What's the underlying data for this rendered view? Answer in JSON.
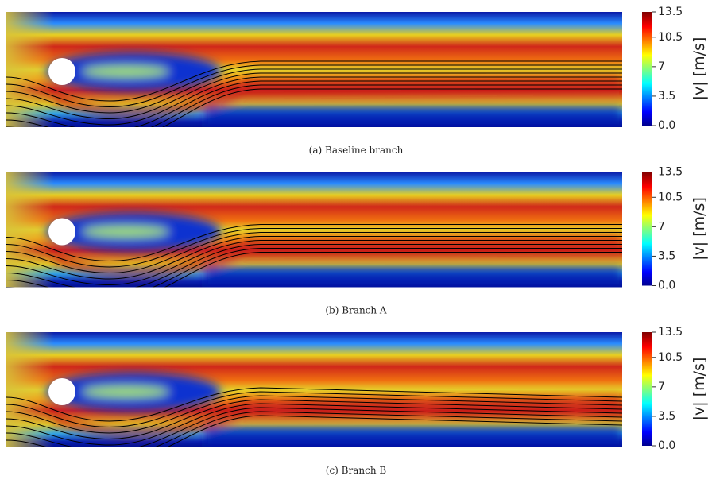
{
  "panels": [
    {
      "caption": "(a) Baseline branch"
    },
    {
      "caption": "(b) Branch A"
    },
    {
      "caption": "(c) Branch B"
    }
  ],
  "colorbar": {
    "label": "|v| [m/s]",
    "range": [
      0,
      13.5
    ],
    "ticks": [
      {
        "value": 0,
        "label": "0.0"
      },
      3.5,
      7,
      10.5,
      13.5
    ]
  }
}
